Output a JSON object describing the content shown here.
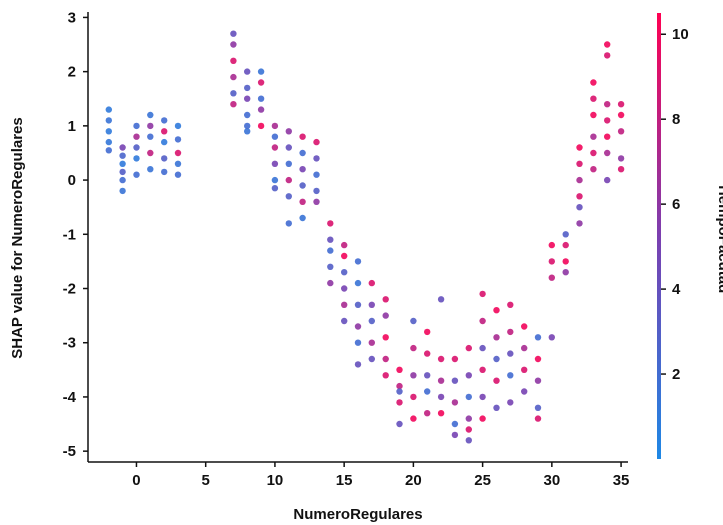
{
  "chart_data": {
    "type": "scatter",
    "title": "",
    "xlabel": "NumeroRegulares",
    "ylabel": "SHAP value for NumeroRegulares",
    "colorbar_label": "TiempoFacutad",
    "xlim": [
      -3.5,
      35.5
    ],
    "ylim": [
      -5.2,
      3.1
    ],
    "xticks": [
      0,
      5,
      10,
      15,
      20,
      25,
      30,
      35
    ],
    "yticks": [
      3,
      2,
      1,
      0,
      -1,
      -2,
      -3,
      -4,
      -5
    ],
    "colorbar_ticks": [
      2,
      4,
      6,
      8,
      10
    ],
    "color_range": [
      0,
      10.5
    ],
    "colormap": [
      "#1e88e5",
      "#7b3fb0",
      "#ff0052"
    ],
    "grid": false,
    "points": [
      {
        "x": -2,
        "y": 1.3,
        "c": 1
      },
      {
        "x": -2,
        "y": 1.1,
        "c": 1.5
      },
      {
        "x": -2,
        "y": 0.9,
        "c": 1
      },
      {
        "x": -2,
        "y": 0.7,
        "c": 1.2
      },
      {
        "x": -2,
        "y": 0.55,
        "c": 2
      },
      {
        "x": -1,
        "y": 0.45,
        "c": 2.5
      },
      {
        "x": -1,
        "y": 0.3,
        "c": 1
      },
      {
        "x": -1,
        "y": 0.15,
        "c": 3
      },
      {
        "x": -1,
        "y": 0.0,
        "c": 2
      },
      {
        "x": -1,
        "y": -0.2,
        "c": 1.5
      },
      {
        "x": -1,
        "y": 0.6,
        "c": 5
      },
      {
        "x": 0,
        "y": 1.0,
        "c": 2
      },
      {
        "x": 0,
        "y": 0.8,
        "c": 7
      },
      {
        "x": 0,
        "y": 0.6,
        "c": 3
      },
      {
        "x": 0,
        "y": 0.4,
        "c": 1
      },
      {
        "x": 0,
        "y": 0.1,
        "c": 2
      },
      {
        "x": 1,
        "y": 1.2,
        "c": 1.5
      },
      {
        "x": 1,
        "y": 1.0,
        "c": 6
      },
      {
        "x": 1,
        "y": 0.8,
        "c": 2
      },
      {
        "x": 1,
        "y": 0.5,
        "c": 8
      },
      {
        "x": 1,
        "y": 0.2,
        "c": 1.5
      },
      {
        "x": 2,
        "y": 1.1,
        "c": 2
      },
      {
        "x": 2,
        "y": 0.9,
        "c": 9
      },
      {
        "x": 2,
        "y": 0.7,
        "c": 1
      },
      {
        "x": 2,
        "y": 0.4,
        "c": 3
      },
      {
        "x": 2,
        "y": 0.15,
        "c": 2
      },
      {
        "x": 3,
        "y": 1.0,
        "c": 1
      },
      {
        "x": 3,
        "y": 0.75,
        "c": 2
      },
      {
        "x": 3,
        "y": 0.5,
        "c": 9
      },
      {
        "x": 3,
        "y": 0.3,
        "c": 1.5
      },
      {
        "x": 3,
        "y": 0.1,
        "c": 2
      },
      {
        "x": 7,
        "y": 2.7,
        "c": 4
      },
      {
        "x": 7,
        "y": 2.5,
        "c": 6
      },
      {
        "x": 7,
        "y": 2.2,
        "c": 9
      },
      {
        "x": 7,
        "y": 1.9,
        "c": 7
      },
      {
        "x": 7,
        "y": 1.6,
        "c": 3
      },
      {
        "x": 7,
        "y": 1.4,
        "c": 8
      },
      {
        "x": 8,
        "y": 2.0,
        "c": 4
      },
      {
        "x": 8,
        "y": 1.7,
        "c": 3
      },
      {
        "x": 8,
        "y": 1.5,
        "c": 5
      },
      {
        "x": 8,
        "y": 1.2,
        "c": 2
      },
      {
        "x": 8,
        "y": 0.9,
        "c": 1.5
      },
      {
        "x": 8,
        "y": 1.0,
        "c": 2
      },
      {
        "x": 9,
        "y": 2.0,
        "c": 1.5
      },
      {
        "x": 9,
        "y": 1.8,
        "c": 9
      },
      {
        "x": 9,
        "y": 1.5,
        "c": 2
      },
      {
        "x": 9,
        "y": 1.3,
        "c": 6
      },
      {
        "x": 9,
        "y": 1.0,
        "c": 10
      },
      {
        "x": 10,
        "y": 1.0,
        "c": 7
      },
      {
        "x": 10,
        "y": 0.8,
        "c": 2
      },
      {
        "x": 10,
        "y": 0.6,
        "c": 8
      },
      {
        "x": 10,
        "y": 0.3,
        "c": 5
      },
      {
        "x": 10,
        "y": 0.0,
        "c": 1.5
      },
      {
        "x": 10,
        "y": -0.15,
        "c": 3
      },
      {
        "x": 11,
        "y": 0.9,
        "c": 6
      },
      {
        "x": 11,
        "y": 0.6,
        "c": 4
      },
      {
        "x": 11,
        "y": 0.3,
        "c": 2
      },
      {
        "x": 11,
        "y": 0.0,
        "c": 8
      },
      {
        "x": 11,
        "y": -0.3,
        "c": 3
      },
      {
        "x": 11,
        "y": -0.8,
        "c": 2
      },
      {
        "x": 12,
        "y": 0.8,
        "c": 9
      },
      {
        "x": 12,
        "y": 0.5,
        "c": 2
      },
      {
        "x": 12,
        "y": 0.2,
        "c": 5
      },
      {
        "x": 12,
        "y": -0.1,
        "c": 3
      },
      {
        "x": 12,
        "y": -0.4,
        "c": 8
      },
      {
        "x": 12,
        "y": -0.7,
        "c": 1.5
      },
      {
        "x": 13,
        "y": 0.7,
        "c": 9
      },
      {
        "x": 13,
        "y": 0.4,
        "c": 4
      },
      {
        "x": 13,
        "y": 0.1,
        "c": 2
      },
      {
        "x": 13,
        "y": -0.2,
        "c": 3
      },
      {
        "x": 13,
        "y": -0.4,
        "c": 6
      },
      {
        "x": 14,
        "y": -0.8,
        "c": 9
      },
      {
        "x": 14,
        "y": -1.1,
        "c": 4
      },
      {
        "x": 14,
        "y": -1.3,
        "c": 2
      },
      {
        "x": 14,
        "y": -1.6,
        "c": 3
      },
      {
        "x": 14,
        "y": -1.9,
        "c": 6
      },
      {
        "x": 15,
        "y": -1.2,
        "c": 8
      },
      {
        "x": 15,
        "y": -1.4,
        "c": 10
      },
      {
        "x": 15,
        "y": -1.7,
        "c": 3
      },
      {
        "x": 15,
        "y": -2.0,
        "c": 5
      },
      {
        "x": 15,
        "y": -2.3,
        "c": 7
      },
      {
        "x": 15,
        "y": -2.6,
        "c": 4
      },
      {
        "x": 16,
        "y": -1.5,
        "c": 2
      },
      {
        "x": 16,
        "y": -1.9,
        "c": 1.5
      },
      {
        "x": 16,
        "y": -2.3,
        "c": 3
      },
      {
        "x": 16,
        "y": -2.7,
        "c": 6
      },
      {
        "x": 16,
        "y": -3.0,
        "c": 2
      },
      {
        "x": 16,
        "y": -3.4,
        "c": 4
      },
      {
        "x": 17,
        "y": -1.9,
        "c": 9
      },
      {
        "x": 17,
        "y": -2.3,
        "c": 5
      },
      {
        "x": 17,
        "y": -2.6,
        "c": 3
      },
      {
        "x": 17,
        "y": -3.0,
        "c": 7
      },
      {
        "x": 17,
        "y": -3.3,
        "c": 4
      },
      {
        "x": 18,
        "y": -2.2,
        "c": 9
      },
      {
        "x": 18,
        "y": -2.5,
        "c": 6
      },
      {
        "x": 18,
        "y": -2.9,
        "c": 10
      },
      {
        "x": 18,
        "y": -3.3,
        "c": 8
      },
      {
        "x": 18,
        "y": -3.6,
        "c": 9
      },
      {
        "x": 19,
        "y": -3.5,
        "c": 10
      },
      {
        "x": 19,
        "y": -3.8,
        "c": 8
      },
      {
        "x": 19,
        "y": -4.1,
        "c": 9
      },
      {
        "x": 19,
        "y": -4.5,
        "c": 4
      },
      {
        "x": 19,
        "y": -3.9,
        "c": 3
      },
      {
        "x": 20,
        "y": -2.6,
        "c": 3
      },
      {
        "x": 20,
        "y": -3.1,
        "c": 8
      },
      {
        "x": 20,
        "y": -3.6,
        "c": 6
      },
      {
        "x": 20,
        "y": -4.0,
        "c": 9
      },
      {
        "x": 20,
        "y": -4.4,
        "c": 10
      },
      {
        "x": 21,
        "y": -2.8,
        "c": 10
      },
      {
        "x": 21,
        "y": -3.2,
        "c": 9
      },
      {
        "x": 21,
        "y": -3.6,
        "c": 4
      },
      {
        "x": 21,
        "y": -3.9,
        "c": 2
      },
      {
        "x": 21,
        "y": -4.3,
        "c": 8
      },
      {
        "x": 22,
        "y": -2.2,
        "c": 4
      },
      {
        "x": 22,
        "y": -3.3,
        "c": 9
      },
      {
        "x": 22,
        "y": -3.7,
        "c": 7
      },
      {
        "x": 22,
        "y": -4.0,
        "c": 5
      },
      {
        "x": 22,
        "y": -4.3,
        "c": 10
      },
      {
        "x": 23,
        "y": -3.3,
        "c": 9
      },
      {
        "x": 23,
        "y": -3.7,
        "c": 4
      },
      {
        "x": 23,
        "y": -4.1,
        "c": 7
      },
      {
        "x": 23,
        "y": -4.5,
        "c": 2
      },
      {
        "x": 23,
        "y": -4.7,
        "c": 5
      },
      {
        "x": 24,
        "y": -3.1,
        "c": 9
      },
      {
        "x": 24,
        "y": -3.6,
        "c": 5
      },
      {
        "x": 24,
        "y": -4.0,
        "c": 2
      },
      {
        "x": 24,
        "y": -4.4,
        "c": 6
      },
      {
        "x": 24,
        "y": -4.8,
        "c": 4
      },
      {
        "x": 24,
        "y": -4.6,
        "c": 9
      },
      {
        "x": 25,
        "y": -2.1,
        "c": 9
      },
      {
        "x": 25,
        "y": -2.6,
        "c": 8
      },
      {
        "x": 25,
        "y": -3.1,
        "c": 4
      },
      {
        "x": 25,
        "y": -3.5,
        "c": 9
      },
      {
        "x": 25,
        "y": -4.0,
        "c": 5
      },
      {
        "x": 25,
        "y": -4.4,
        "c": 10
      },
      {
        "x": 26,
        "y": -2.4,
        "c": 10
      },
      {
        "x": 26,
        "y": -2.9,
        "c": 7
      },
      {
        "x": 26,
        "y": -3.3,
        "c": 3
      },
      {
        "x": 26,
        "y": -3.7,
        "c": 9
      },
      {
        "x": 26,
        "y": -4.2,
        "c": 4
      },
      {
        "x": 27,
        "y": -2.3,
        "c": 9
      },
      {
        "x": 27,
        "y": -2.8,
        "c": 8
      },
      {
        "x": 27,
        "y": -3.2,
        "c": 4
      },
      {
        "x": 27,
        "y": -3.6,
        "c": 2
      },
      {
        "x": 27,
        "y": -4.1,
        "c": 5
      },
      {
        "x": 28,
        "y": -2.7,
        "c": 10
      },
      {
        "x": 28,
        "y": -3.1,
        "c": 7
      },
      {
        "x": 28,
        "y": -3.5,
        "c": 9
      },
      {
        "x": 28,
        "y": -3.9,
        "c": 5
      },
      {
        "x": 29,
        "y": -2.9,
        "c": 2
      },
      {
        "x": 29,
        "y": -3.3,
        "c": 10
      },
      {
        "x": 29,
        "y": -3.7,
        "c": 6
      },
      {
        "x": 29,
        "y": -4.2,
        "c": 3
      },
      {
        "x": 29,
        "y": -4.4,
        "c": 9
      },
      {
        "x": 30,
        "y": -1.2,
        "c": 10
      },
      {
        "x": 30,
        "y": -1.5,
        "c": 9
      },
      {
        "x": 30,
        "y": -1.8,
        "c": 8
      },
      {
        "x": 30,
        "y": -2.9,
        "c": 5
      },
      {
        "x": 31,
        "y": -1.0,
        "c": 3
      },
      {
        "x": 31,
        "y": -1.2,
        "c": 9
      },
      {
        "x": 31,
        "y": -1.5,
        "c": 10
      },
      {
        "x": 31,
        "y": -1.7,
        "c": 6
      },
      {
        "x": 32,
        "y": 0.6,
        "c": 10
      },
      {
        "x": 32,
        "y": 0.3,
        "c": 9
      },
      {
        "x": 32,
        "y": 0.0,
        "c": 7
      },
      {
        "x": 32,
        "y": -0.3,
        "c": 9
      },
      {
        "x": 32,
        "y": -0.5,
        "c": 4
      },
      {
        "x": 32,
        "y": -0.8,
        "c": 6
      },
      {
        "x": 33,
        "y": 1.8,
        "c": 10
      },
      {
        "x": 33,
        "y": 1.5,
        "c": 9
      },
      {
        "x": 33,
        "y": 1.2,
        "c": 10
      },
      {
        "x": 33,
        "y": 0.8,
        "c": 7
      },
      {
        "x": 33,
        "y": 0.5,
        "c": 9
      },
      {
        "x": 33,
        "y": 0.2,
        "c": 8
      },
      {
        "x": 34,
        "y": 2.5,
        "c": 10
      },
      {
        "x": 34,
        "y": 2.3,
        "c": 9
      },
      {
        "x": 34,
        "y": 1.4,
        "c": 8
      },
      {
        "x": 34,
        "y": 1.1,
        "c": 9
      },
      {
        "x": 34,
        "y": 0.8,
        "c": 10
      },
      {
        "x": 34,
        "y": 0.5,
        "c": 7
      },
      {
        "x": 34,
        "y": 0.0,
        "c": 5
      },
      {
        "x": 35,
        "y": 1.4,
        "c": 9
      },
      {
        "x": 35,
        "y": 1.2,
        "c": 10
      },
      {
        "x": 35,
        "y": 0.9,
        "c": 8
      },
      {
        "x": 35,
        "y": 0.4,
        "c": 6
      },
      {
        "x": 35,
        "y": 0.2,
        "c": 9
      }
    ]
  }
}
